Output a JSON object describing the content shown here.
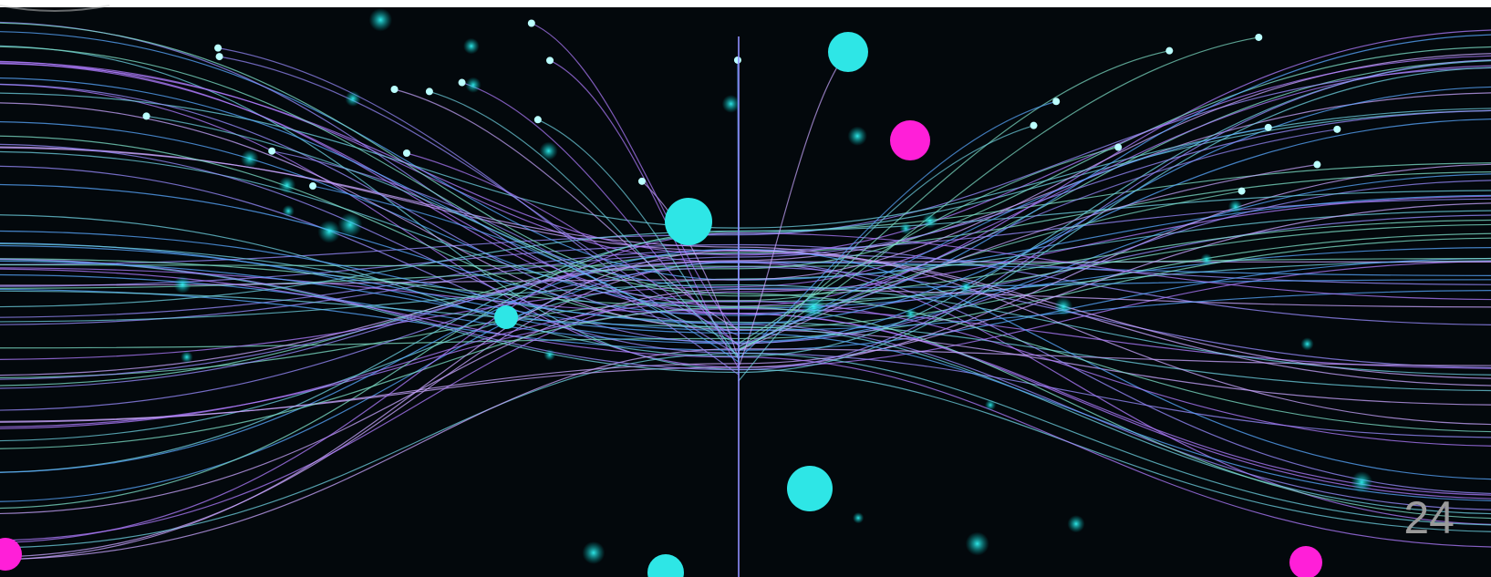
{
  "page_number": "24"
}
